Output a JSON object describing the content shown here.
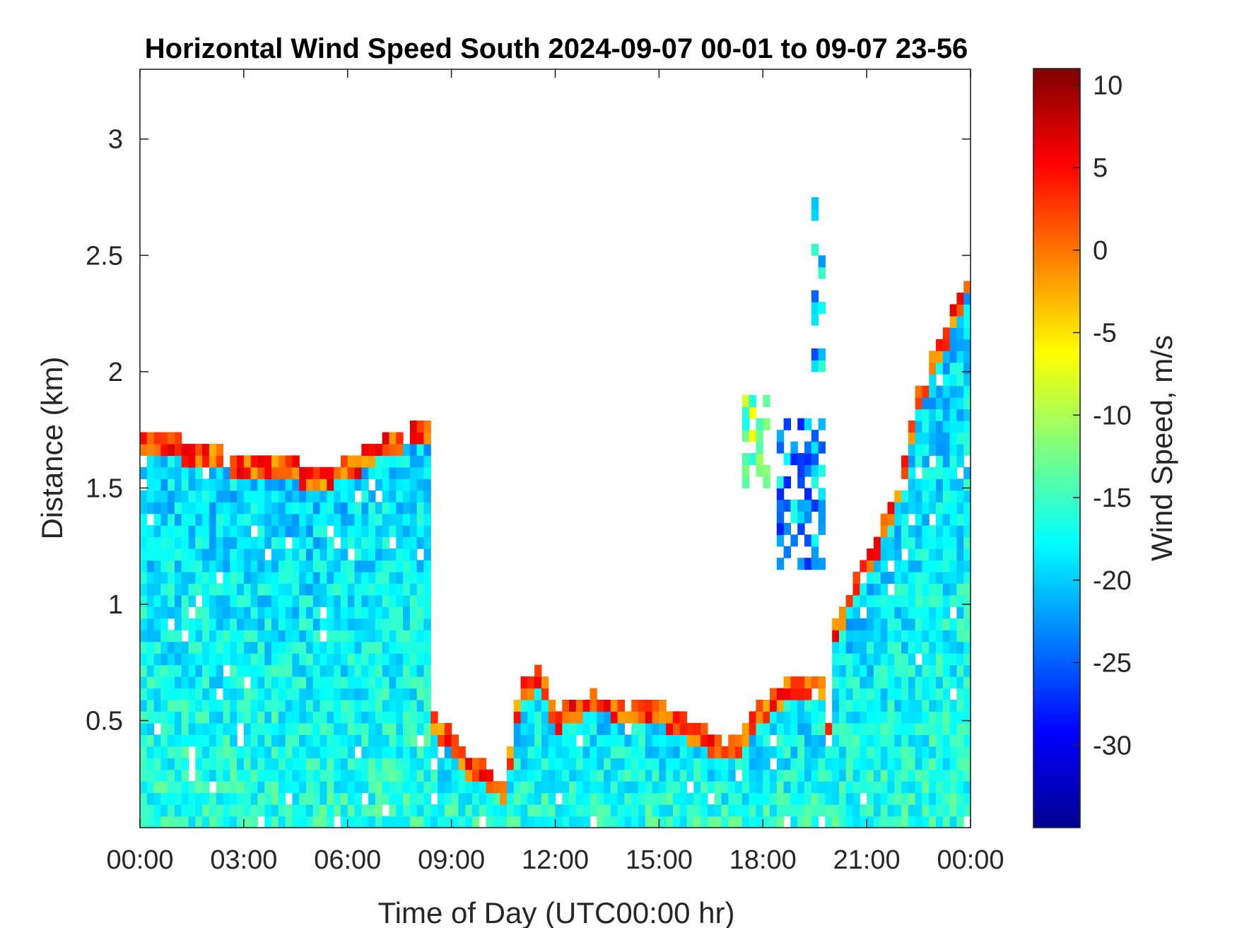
{
  "chart_data": {
    "type": "heatmap",
    "title": "Horizontal Wind Speed South 2024-09-07 00-01 to 09-07 23-56",
    "xlabel": "Time of Day (UTC00:00 hr)",
    "ylabel": "Distance (km)",
    "colorbar_label": "Wind Speed, m/s",
    "colormap": "jet",
    "x_ticks": [
      "00:00",
      "03:00",
      "06:00",
      "09:00",
      "12:00",
      "15:00",
      "18:00",
      "21:00",
      "00:00"
    ],
    "x_range_hours": [
      0,
      24
    ],
    "y_ticks": [
      0.5,
      1,
      1.5,
      2,
      2.5,
      3
    ],
    "y_tick_labels": [
      "0.5",
      "1",
      "1.5",
      "2",
      "2.5",
      "3"
    ],
    "ylim": [
      0.04,
      3.3
    ],
    "colorbar_ticks": [
      10,
      5,
      0,
      -5,
      -10,
      -15,
      -20,
      -25,
      -30
    ],
    "colorbar_tick_labels": [
      "10",
      "5",
      "0",
      "-5",
      "-10",
      "-15",
      "-20",
      "-25",
      "-30"
    ],
    "clim": [
      -35,
      11
    ],
    "grid": false,
    "time_step_hours": 0.2,
    "height_step_km": 0.05,
    "background_speed": -18,
    "boundary_layer_top_km": [
      [
        0,
        1.72
      ],
      [
        1,
        1.72
      ],
      [
        2,
        1.68
      ],
      [
        3,
        1.65
      ],
      [
        4,
        1.66
      ],
      [
        5,
        1.58
      ],
      [
        6,
        1.63
      ],
      [
        7,
        1.72
      ],
      [
        8,
        1.78
      ],
      [
        8.3,
        1.8
      ],
      [
        8.5,
        0.55
      ],
      [
        9,
        0.45
      ],
      [
        9.5,
        0.32
      ],
      [
        10,
        0.32
      ],
      [
        10.5,
        0.25
      ],
      [
        11,
        0.65
      ],
      [
        11.5,
        0.75
      ],
      [
        12,
        0.55
      ],
      [
        13,
        0.62
      ],
      [
        14,
        0.6
      ],
      [
        15,
        0.58
      ],
      [
        16,
        0.5
      ],
      [
        17,
        0.4
      ],
      [
        17.5,
        0.5
      ],
      [
        18,
        0.6
      ],
      [
        19,
        0.7
      ],
      [
        19.8,
        0.7
      ],
      [
        20,
        0.25
      ],
      [
        20.1,
        0.95
      ],
      [
        21,
        1.2
      ],
      [
        22,
        1.55
      ],
      [
        22.5,
        1.95
      ],
      [
        23,
        2.1
      ],
      [
        24,
        2.45
      ]
    ],
    "elevated_layers": [
      {
        "x_range": [
          17.4,
          18.1
        ],
        "y_range": [
          1.5,
          1.9
        ],
        "speed": -12
      },
      {
        "x_range": [
          18.4,
          19.7
        ],
        "y_range": [
          1.1,
          1.8
        ],
        "speed": -22
      },
      {
        "x_range": [
          19.4,
          19.6
        ],
        "y_range": [
          2.0,
          2.7
        ],
        "speed": -20
      }
    ]
  }
}
